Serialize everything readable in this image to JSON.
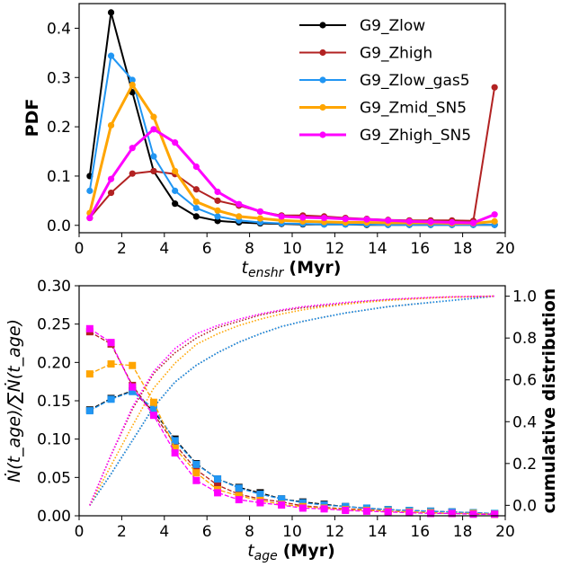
{
  "chart_data": [
    {
      "type": "line",
      "xlabel_main": "t",
      "xlabel_sub": "enshr",
      "xlabel_unit": "(Myr)",
      "ylabel": "PDF",
      "xlim": [
        0,
        20
      ],
      "ylim": [
        -0.015,
        0.45
      ],
      "xticks": [
        "0",
        "2",
        "4",
        "6",
        "8",
        "10",
        "12",
        "14",
        "16",
        "18",
        "20"
      ],
      "yticks": [
        "0.0",
        "0.1",
        "0.2",
        "0.3",
        "0.4"
      ],
      "legend_position": "top-right",
      "x": [
        0.5,
        1.5,
        2.5,
        3.5,
        4.5,
        5.5,
        6.5,
        7.5,
        8.5,
        9.5,
        10.5,
        11.5,
        12.5,
        13.5,
        14.5,
        15.5,
        16.5,
        17.5,
        18.5,
        19.5
      ],
      "series": [
        {
          "name": "G9_Zlow",
          "color": "#000000",
          "width": 2,
          "values": [
            0.1,
            0.432,
            0.27,
            0.11,
            0.044,
            0.018,
            0.009,
            0.006,
            0.004,
            0.003,
            0.002,
            0.002,
            0.002,
            0.001,
            0.001,
            0.001,
            0.001,
            0.001,
            0.001,
            0.001
          ]
        },
        {
          "name": "G9_Zhigh",
          "color": "#b22222",
          "width": 2,
          "values": [
            0.015,
            0.066,
            0.105,
            0.11,
            0.104,
            0.073,
            0.05,
            0.04,
            0.028,
            0.02,
            0.02,
            0.018,
            0.015,
            0.013,
            0.011,
            0.01,
            0.01,
            0.01,
            0.009,
            0.28
          ]
        },
        {
          "name": "G9_Zlow_gas5",
          "color": "#2196f3",
          "width": 2,
          "values": [
            0.07,
            0.344,
            0.295,
            0.14,
            0.07,
            0.035,
            0.018,
            0.01,
            0.006,
            0.004,
            0.003,
            0.002,
            0.002,
            0.002,
            0.001,
            0.001,
            0.001,
            0.001,
            0.001,
            0.001
          ]
        },
        {
          "name": "G9_Zmid_SN5",
          "color": "#ffa500",
          "width": 3,
          "values": [
            0.025,
            0.203,
            0.285,
            0.22,
            0.11,
            0.048,
            0.03,
            0.018,
            0.014,
            0.01,
            0.008,
            0.007,
            0.006,
            0.006,
            0.005,
            0.005,
            0.005,
            0.004,
            0.004,
            0.008
          ]
        },
        {
          "name": "G9_Zhigh_SN5",
          "color": "#ff00ff",
          "width": 3,
          "values": [
            0.015,
            0.094,
            0.157,
            0.195,
            0.168,
            0.119,
            0.068,
            0.043,
            0.028,
            0.018,
            0.016,
            0.015,
            0.013,
            0.012,
            0.01,
            0.008,
            0.007,
            0.006,
            0.005,
            0.022
          ]
        }
      ]
    },
    {
      "type": "line",
      "xlabel_main": "t",
      "xlabel_sub": "age",
      "xlabel_unit": "(Myr)",
      "ylabel_left": "Ṅ(t_age)/∑Ṅ(t_age)",
      "ylabel_right": "cumulative distribution",
      "xlim": [
        0,
        20
      ],
      "ylim_left": [
        0,
        0.3
      ],
      "ylim_right": [
        -0.05,
        1.05
      ],
      "xticks": [
        "0",
        "2",
        "4",
        "6",
        "8",
        "10",
        "12",
        "14",
        "16",
        "18",
        "20"
      ],
      "yticks_left": [
        "0.00",
        "0.05",
        "0.10",
        "0.15",
        "0.20",
        "0.25",
        "0.30"
      ],
      "yticks_right": [
        "0.0",
        "0.2",
        "0.4",
        "0.6",
        "0.8",
        "1.0"
      ],
      "x": [
        0.5,
        1.5,
        2.5,
        3.5,
        4.5,
        5.5,
        6.5,
        7.5,
        8.5,
        9.5,
        10.5,
        11.5,
        12.5,
        13.5,
        14.5,
        15.5,
        16.5,
        17.5,
        18.5,
        19.5
      ],
      "series": [
        {
          "name": "G9_Zlow",
          "color": "#000000",
          "values": [
            0.138,
            0.153,
            0.163,
            0.136,
            0.1,
            0.068,
            0.048,
            0.037,
            0.03,
            0.022,
            0.018,
            0.015,
            0.012,
            0.01,
            0.008,
            0.007,
            0.006,
            0.005,
            0.004,
            0.003
          ],
          "cumulative": [
            0.0,
            0.15,
            0.31,
            0.47,
            0.59,
            0.67,
            0.73,
            0.78,
            0.82,
            0.855,
            0.88,
            0.9,
            0.92,
            0.935,
            0.95,
            0.96,
            0.97,
            0.98,
            0.99,
            1.0
          ]
        },
        {
          "name": "G9_Zhigh",
          "color": "#b22222",
          "values": [
            0.24,
            0.224,
            0.17,
            0.133,
            0.093,
            0.06,
            0.04,
            0.028,
            0.022,
            0.018,
            0.013,
            0.011,
            0.009,
            0.008,
            0.006,
            0.005,
            0.004,
            0.003,
            0.003,
            0.002
          ],
          "cumulative": [
            0.0,
            0.24,
            0.46,
            0.63,
            0.73,
            0.8,
            0.85,
            0.88,
            0.91,
            0.93,
            0.945,
            0.955,
            0.965,
            0.975,
            0.982,
            0.987,
            0.992,
            0.996,
            0.998,
            1.0
          ]
        },
        {
          "name": "G9_Zlow_gas5",
          "color": "#2196f3",
          "values": [
            0.137,
            0.152,
            0.162,
            0.14,
            0.098,
            0.067,
            0.048,
            0.036,
            0.028,
            0.022,
            0.017,
            0.014,
            0.012,
            0.01,
            0.008,
            0.007,
            0.006,
            0.005,
            0.004,
            0.003
          ],
          "cumulative": [
            0.0,
            0.15,
            0.31,
            0.47,
            0.59,
            0.67,
            0.73,
            0.78,
            0.82,
            0.855,
            0.88,
            0.9,
            0.92,
            0.935,
            0.95,
            0.96,
            0.97,
            0.98,
            0.99,
            1.0
          ]
        },
        {
          "name": "G9_Zmid_SN5",
          "color": "#ffa500",
          "values": [
            0.185,
            0.198,
            0.196,
            0.148,
            0.088,
            0.056,
            0.034,
            0.026,
            0.02,
            0.015,
            0.012,
            0.01,
            0.008,
            0.007,
            0.006,
            0.005,
            0.004,
            0.003,
            0.003,
            0.002
          ],
          "cumulative": [
            0.0,
            0.19,
            0.38,
            0.56,
            0.68,
            0.77,
            0.82,
            0.86,
            0.89,
            0.915,
            0.935,
            0.95,
            0.962,
            0.972,
            0.98,
            0.986,
            0.992,
            0.996,
            0.998,
            1.0
          ]
        },
        {
          "name": "G9_Zhigh_SN5",
          "color": "#ff00ff",
          "values": [
            0.244,
            0.226,
            0.168,
            0.131,
            0.082,
            0.046,
            0.03,
            0.021,
            0.017,
            0.014,
            0.01,
            0.009,
            0.007,
            0.006,
            0.005,
            0.004,
            0.003,
            0.003,
            0.002,
            0.002
          ],
          "cumulative": [
            0.0,
            0.24,
            0.47,
            0.64,
            0.75,
            0.82,
            0.86,
            0.89,
            0.915,
            0.935,
            0.95,
            0.96,
            0.97,
            0.978,
            0.985,
            0.99,
            0.994,
            0.997,
            0.999,
            1.0
          ]
        }
      ]
    }
  ]
}
